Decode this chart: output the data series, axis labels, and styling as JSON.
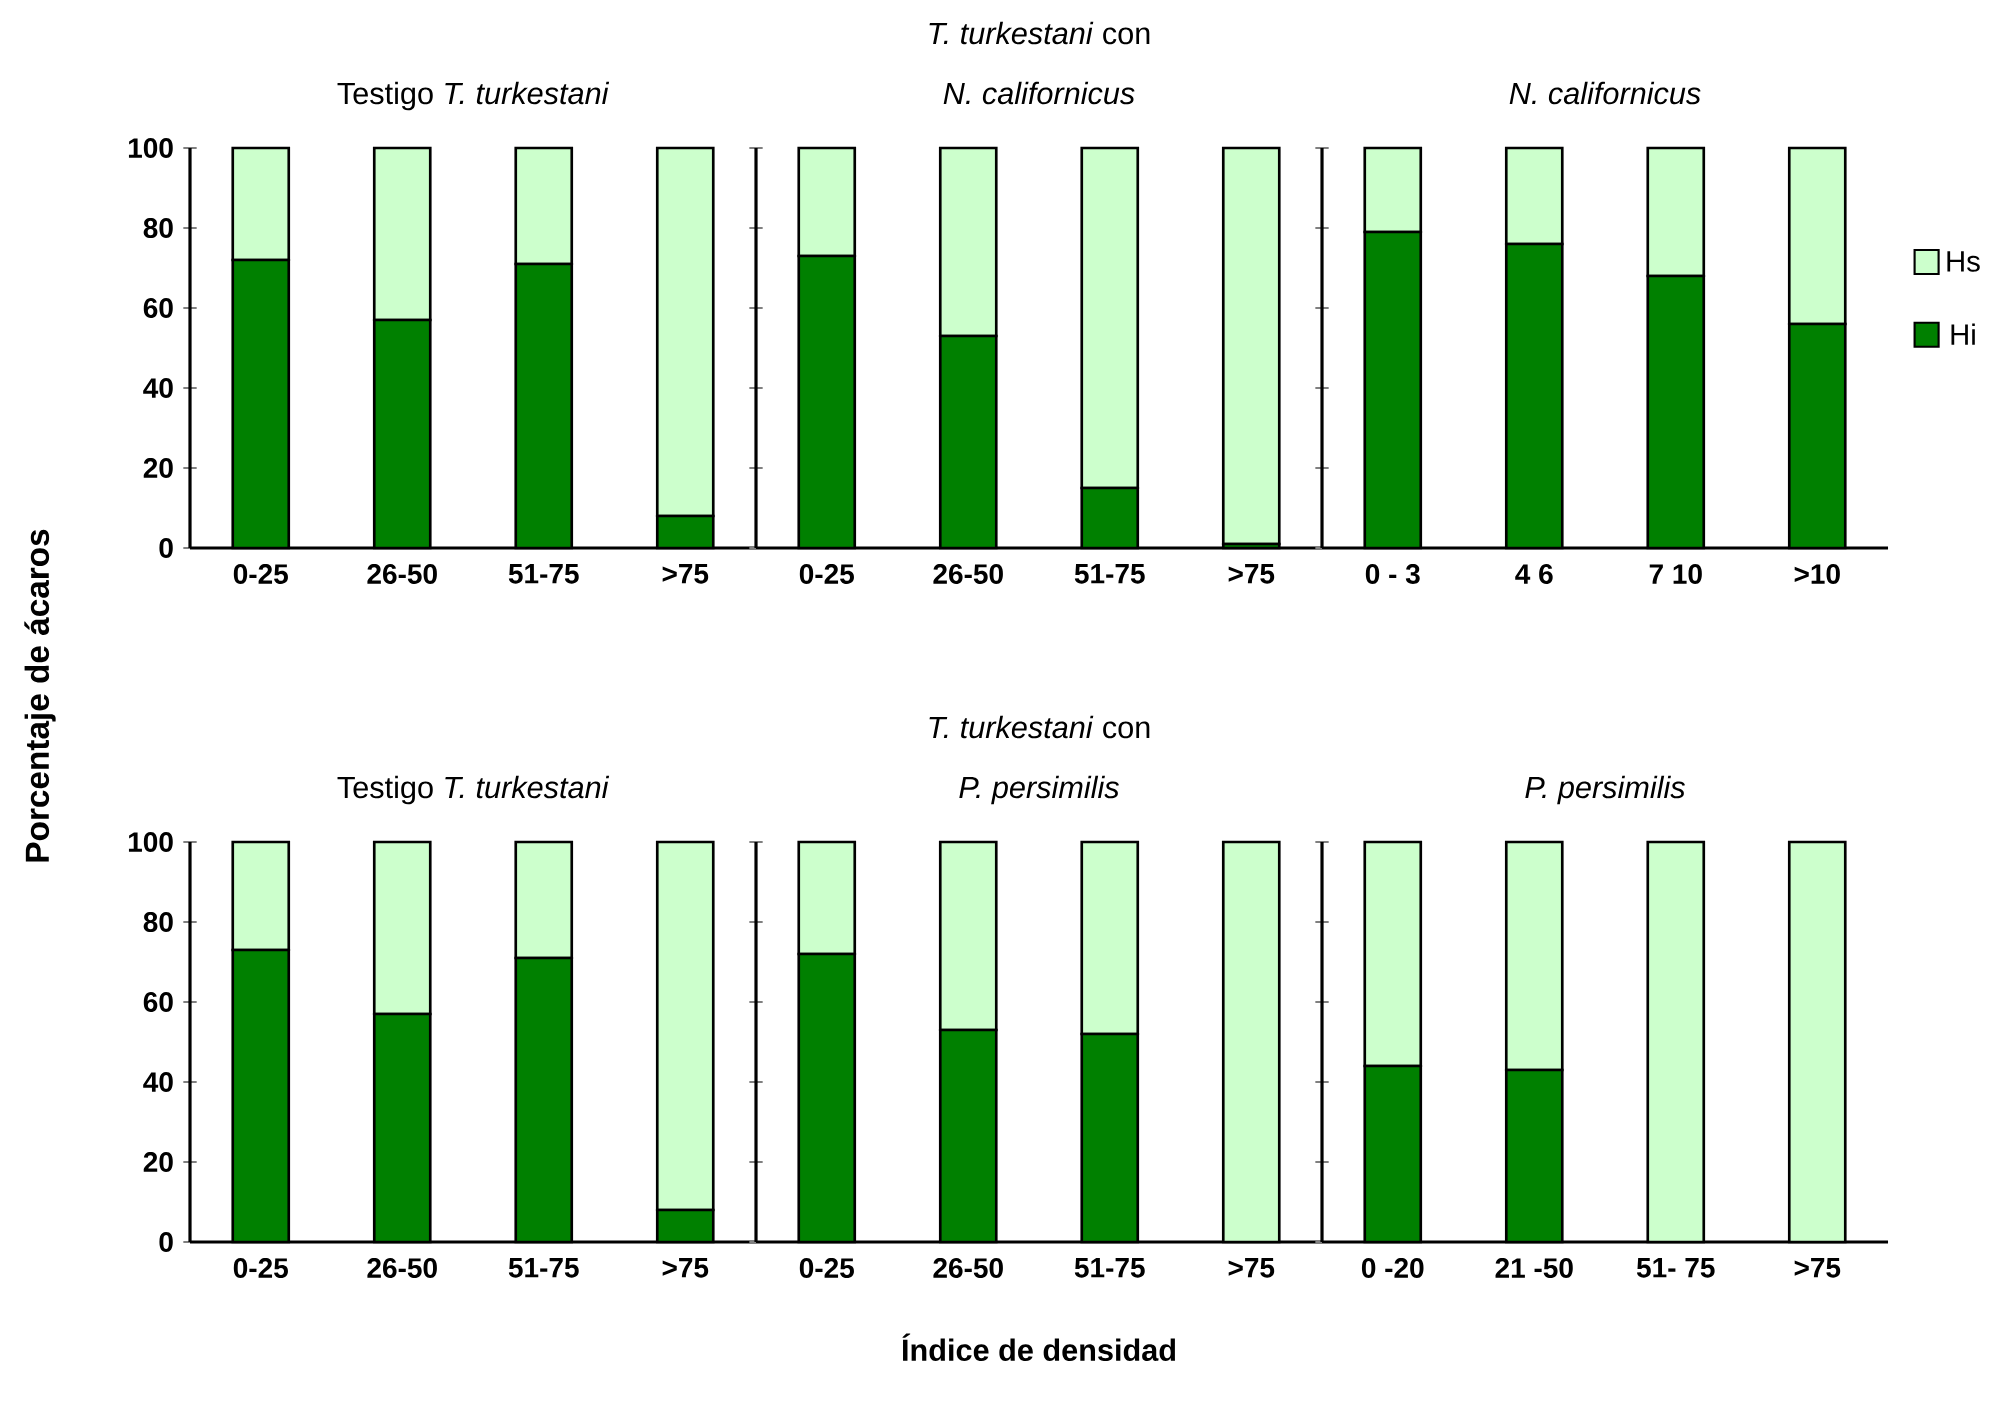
{
  "chart_data": [
    {
      "type": "bar",
      "stacked": true,
      "title": "Testigo *T. turkestani*",
      "ylabel": "Porcentaje de ácaros",
      "categories": [
        "0-25",
        "26-50",
        "51-75",
        ">75"
      ],
      "ylim": [
        0,
        100
      ],
      "yticks": [
        0,
        20,
        40,
        60,
        80,
        100
      ],
      "series": [
        {
          "color": "#008000",
          "values": [
            72,
            57,
            71,
            8
          ]
        },
        {
          "color": "#ccffcc",
          "values": [
            28,
            43,
            29,
            92
          ]
        }
      ]
    },
    {
      "type": "bar",
      "stacked": true,
      "title": "*T. turkestani* con",
      "subtitle": "*N. californicus*",
      "categories": [
        "0-25",
        "26-50",
        "51-75",
        ">75"
      ],
      "ylim": [
        0,
        100
      ],
      "yticks": [
        0,
        20,
        40,
        60,
        80,
        100
      ],
      "tick_labels": "x",
      "series": [
        {
          "color": "#008000",
          "values": [
            73,
            53,
            15,
            1
          ]
        },
        {
          "color": "#ccffcc",
          "values": [
            27,
            47,
            85,
            99
          ]
        }
      ]
    },
    {
      "type": "bar",
      "stacked": true,
      "title": "*N. californicus*",
      "categories": [
        "0 - 3",
        "4 6",
        "7 10",
        ">10"
      ],
      "ylim": [
        0,
        100
      ],
      "yticks": [
        0,
        20,
        40,
        60,
        80,
        100
      ],
      "tick_labels": "x",
      "legend": "right",
      "series": [
        {
          "name": "Hi",
          "color": "#008000",
          "values": [
            79,
            76,
            68,
            56
          ]
        },
        {
          "name": "Hs",
          "color": "#ccffcc",
          "values": [
            21,
            24,
            32,
            44
          ]
        }
      ]
    },
    {
      "type": "bar",
      "stacked": true,
      "title": "Testigo *T. turkestani*",
      "categories": [
        "0-25",
        "26-50",
        "51-75",
        ">75"
      ],
      "ylim": [
        0,
        100
      ],
      "yticks": [
        0,
        20,
        40,
        60,
        80,
        100
      ],
      "series": [
        {
          "color": "#008000",
          "values": [
            73,
            57,
            71,
            8
          ]
        },
        {
          "color": "#ccffcc",
          "values": [
            27,
            43,
            29,
            92
          ]
        }
      ]
    },
    {
      "type": "bar",
      "stacked": true,
      "title": "*T. turkestani* con",
      "subtitle": "*P. persimilis*",
      "xlabel": "Índice de densidad",
      "categories": [
        "0-25",
        "26-50",
        "51-75",
        ">75"
      ],
      "ylim": [
        0,
        100
      ],
      "yticks": [
        0,
        20,
        40,
        60,
        80,
        100
      ],
      "tick_labels": "x",
      "series": [
        {
          "color": "#008000",
          "values": [
            72,
            53,
            52,
            0
          ]
        },
        {
          "color": "#ccffcc",
          "values": [
            28,
            47,
            48,
            100
          ]
        }
      ]
    },
    {
      "type": "bar",
      "stacked": true,
      "title": "*P. persimilis*",
      "categories": [
        "0 -20",
        "21 -50",
        "51- 75",
        ">75"
      ],
      "ylim": [
        0,
        100
      ],
      "yticks": [
        0,
        20,
        40,
        60,
        80,
        100
      ],
      "tick_labels": "x",
      "series": [
        {
          "color": "#008000",
          "values": [
            44,
            43,
            0,
            0
          ]
        },
        {
          "color": "#ccffcc",
          "values": [
            56,
            57,
            100,
            100
          ]
        }
      ]
    }
  ]
}
